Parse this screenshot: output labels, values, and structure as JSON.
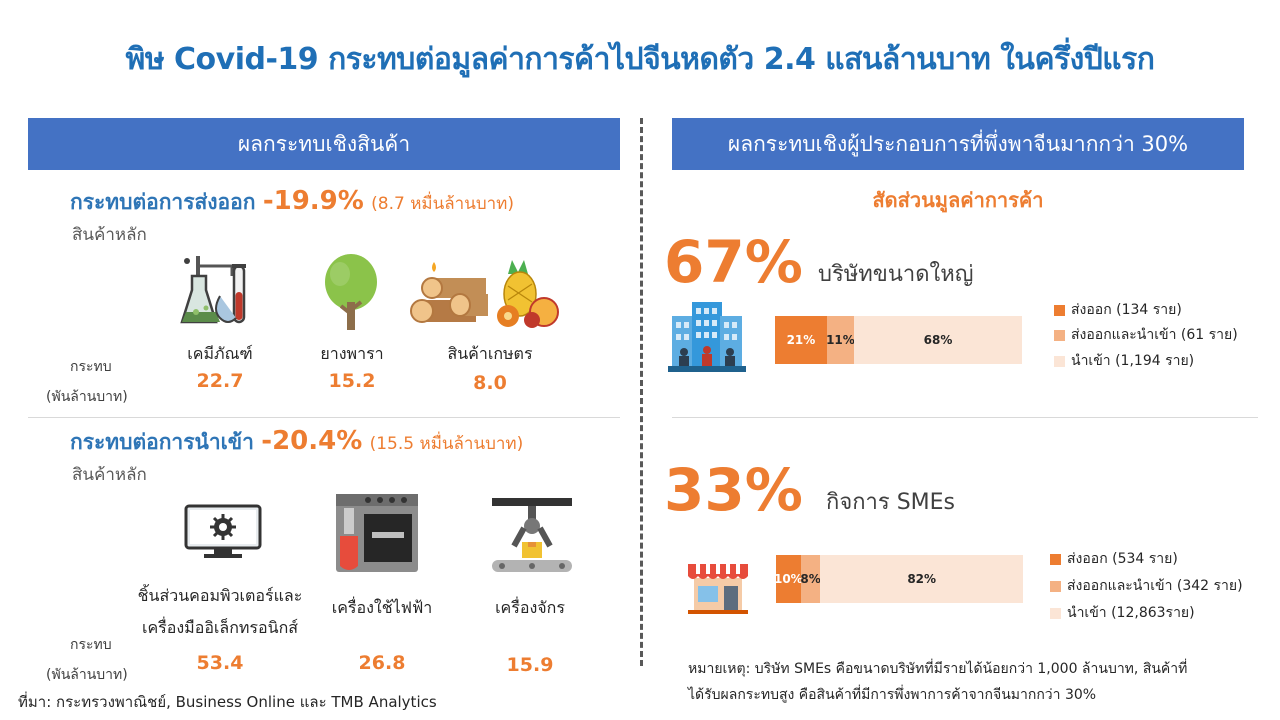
{
  "title": "พิษ Covid-19 กระทบต่อมูลค่าการค้าไปจีนหดตัว 2.4 แสนล้านบาท ในครึ่งปีแรก",
  "left": {
    "header": "ผลกระทบเชิงสินค้า",
    "export": {
      "heading": "กระทบต่อการส่งออก",
      "pct": "-19.9%",
      "sub": "(8.7 หมื่นล้านบาท)",
      "sub_label": "สินค้าหลัก",
      "row_label_1": "กระทบ",
      "row_label_2": "(พันล้านบาท)",
      "items": [
        {
          "label": "เคมีภัณฑ์",
          "value": "22.7",
          "icon": "chemistry-lab-icon"
        },
        {
          "label": "ยางพารา",
          "value": "15.2",
          "icon": "tree-icon"
        },
        {
          "label": "สินค้าเกษตร",
          "value": "8.0",
          "icon": "agriculture-produce-icon"
        }
      ]
    },
    "import": {
      "heading": "กระทบต่อการนำเข้า",
      "pct": "-20.4%",
      "sub": "(15.5 หมื่นล้านบาท)",
      "sub_label": "สินค้าหลัก",
      "row_label_1": "กระทบ",
      "row_label_2": "(พันล้านบาท)",
      "items": [
        {
          "label_1": "ชิ้นส่วนคอมพิวเตอร์และ",
          "label_2": "เครื่องมืออิเล็กทรอนิกส์",
          "value": "53.4",
          "icon": "computer-monitor-icon"
        },
        {
          "label_1": "เครื่องใช้ไฟฟ้า",
          "label_2": "",
          "value": "26.8",
          "icon": "oven-appliance-icon"
        },
        {
          "label_1": "เครื่องจักร",
          "label_2": "",
          "value": "15.9",
          "icon": "robotic-arm-icon"
        }
      ]
    }
  },
  "right": {
    "header": "ผลกระทบเชิงผู้ประกอบการที่พึ่งพาจีนมากกว่า 30%",
    "subtitle": "สัดส่วนมูลค่าการค้า",
    "large": {
      "pct": "67%",
      "label": "บริษัทขนาดใหญ่",
      "icon": "office-building-icon",
      "segments": [
        {
          "label": "21%",
          "value": 21
        },
        {
          "label": "11%",
          "value": 11
        },
        {
          "label": "68%",
          "value": 68
        }
      ],
      "legend": [
        "ส่งออก (134 ราย)",
        "ส่งออกและนำเข้า (61 ราย)",
        "นำเข้า (1,194 ราย)"
      ]
    },
    "sme": {
      "pct": "33%",
      "label": "กิจการ SMEs",
      "icon": "shop-icon",
      "segments": [
        {
          "label": "10%",
          "value": 10
        },
        {
          "label": "8%",
          "value": 8
        },
        {
          "label": "82%",
          "value": 82
        }
      ],
      "legend": [
        "ส่งออก (534 ราย)",
        "ส่งออกและนำเข้า (342 ราย)",
        "นำเข้า (12,863ราย)"
      ]
    },
    "note_1": "หมายเหตุ: บริษัท SMEs คือขนาดบริษัทที่มีรายได้น้อยกว่า 1,000 ล้านบาท, สินค้าที่",
    "note_2": "ได้รับผลกระทบสูง คือสินค้าที่มีการพึ่งพาการค้าจากจีนมากกว่า 30%"
  },
  "colors": {
    "export": "#ed7d31",
    "both": "#f4b183",
    "import": "#fbe5d6",
    "header": "#4472c4",
    "title": "#1f6fb6"
  },
  "source": "ที่มา: กระทรวงพาณิชย์, Business Online และ TMB Analytics"
}
